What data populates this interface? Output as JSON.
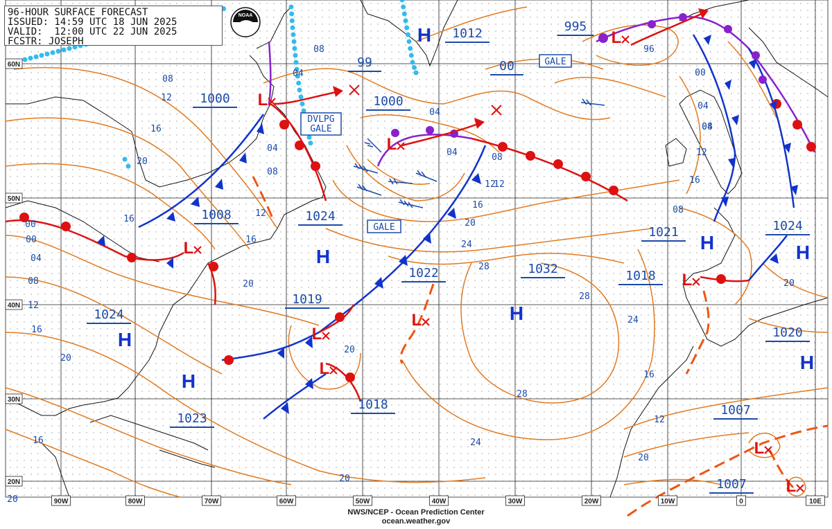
{
  "header": {
    "line1": "96-HOUR SURFACE FORECAST",
    "line2": "ISSUED: 14:59 UTC 18 JUN 2025",
    "line3": "VALID:  12:00 UTC 22 JUN 2025",
    "line4": "FCSTR: JOSEPH"
  },
  "logo_text": "NOAA",
  "footer": {
    "line1": "NWS/NCEP - Ocean Prediction Center",
    "line2": "ocean.weather.gov"
  },
  "lon_labels": [
    "90W",
    "80W",
    "70W",
    "60W",
    "50W",
    "40W",
    "30W",
    "20W",
    "10W",
    "0",
    "10E"
  ],
  "lat_labels": [
    "60N",
    "50N",
    "40N",
    "30N",
    "20N"
  ],
  "pressure_values": [
    "1000",
    "1000",
    "99",
    "1012",
    "00",
    "995",
    "1008",
    "1024",
    "1022",
    "1032",
    "1021",
    "1024",
    "1018",
    "1019",
    "1024",
    "1020",
    "1023",
    "1018",
    "1007",
    "1007"
  ],
  "contour_labels": [
    "08",
    "04",
    "12",
    "16",
    "20",
    "08",
    "04",
    "16",
    "12",
    "16",
    "00",
    "04",
    "08",
    "12",
    "16",
    "20",
    "04",
    "08",
    "12",
    "20",
    "00",
    "04",
    "08",
    "12",
    "16",
    "20",
    "24",
    "28",
    "28",
    "24",
    "28",
    "24",
    "20",
    "16",
    "12",
    "20",
    "08",
    "04",
    "00",
    "96",
    "04",
    "08",
    "12",
    "16",
    "20",
    "20",
    "20",
    "16"
  ],
  "boxed_labels": [
    "GALE",
    "DVLPG\nGALE",
    "GALE"
  ],
  "high_symbol": "H",
  "low_symbol": "L",
  "colors": {
    "isobar": "#E07A1F",
    "cold_front": "#1133CC",
    "warm_front": "#DD1111",
    "occluded_front": "#8822CC",
    "trough": "#EE5511",
    "ice_edge": "#33BBEE",
    "pressure_label": "#1a4aa8",
    "high_low": "#1133CC",
    "low": "#DD1111",
    "land": "#111111"
  }
}
